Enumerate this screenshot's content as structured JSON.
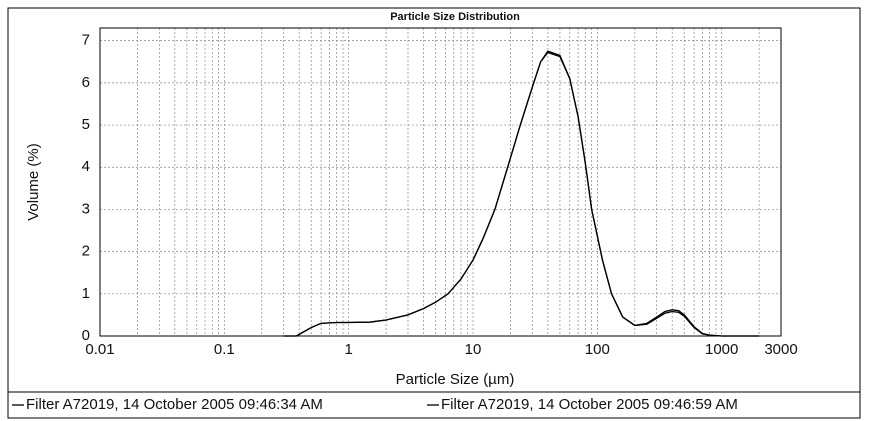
{
  "chart_data": {
    "type": "line",
    "title": "Particle Size Distribution",
    "x_label": "Particle Size (µm)",
    "y_label": "Volume (%)",
    "x": [
      0.3,
      0.38,
      0.5,
      0.6,
      0.8,
      1,
      1.5,
      2,
      3,
      4,
      5,
      6.3,
      8,
      10,
      12,
      15,
      19,
      24,
      30,
      35,
      40,
      50,
      60,
      70,
      80,
      90,
      110,
      130,
      160,
      200,
      250,
      300,
      350,
      400,
      450,
      500,
      600,
      700,
      800,
      1000,
      2000
    ],
    "series": [
      {
        "name": "Filter A72019, 14 October 2005 09:46:34 AM",
        "color": "#000000",
        "values": [
          0,
          0,
          0.2,
          0.3,
          0.32,
          0.32,
          0.33,
          0.38,
          0.5,
          0.65,
          0.8,
          1.0,
          1.35,
          1.8,
          2.3,
          3.0,
          4.0,
          5.0,
          5.9,
          6.5,
          6.75,
          6.65,
          6.1,
          5.2,
          4.1,
          3.0,
          1.8,
          1.0,
          0.45,
          0.25,
          0.3,
          0.45,
          0.58,
          0.62,
          0.6,
          0.5,
          0.22,
          0.06,
          0.02,
          0,
          0
        ]
      },
      {
        "name": "Filter A72019, 14 October 2005 09:46:59 AM",
        "color": "#000000",
        "values": [
          0,
          0,
          0.2,
          0.3,
          0.32,
          0.32,
          0.33,
          0.38,
          0.5,
          0.65,
          0.8,
          1.0,
          1.35,
          1.8,
          2.3,
          3.0,
          4.0,
          5.0,
          5.9,
          6.5,
          6.72,
          6.62,
          6.1,
          5.2,
          4.1,
          3.0,
          1.8,
          1.0,
          0.45,
          0.25,
          0.28,
          0.42,
          0.54,
          0.58,
          0.56,
          0.47,
          0.2,
          0.05,
          0.02,
          0,
          0
        ]
      }
    ],
    "xscale": "log",
    "xlim": [
      0.01,
      3000
    ],
    "xticks": [
      0.01,
      0.1,
      1,
      10,
      100,
      1000,
      3000
    ],
    "ylim": [
      0,
      7.3
    ],
    "yticks": [
      0,
      1,
      2,
      3,
      4,
      5,
      6,
      7
    ],
    "grid": true,
    "legend": "bottom"
  }
}
